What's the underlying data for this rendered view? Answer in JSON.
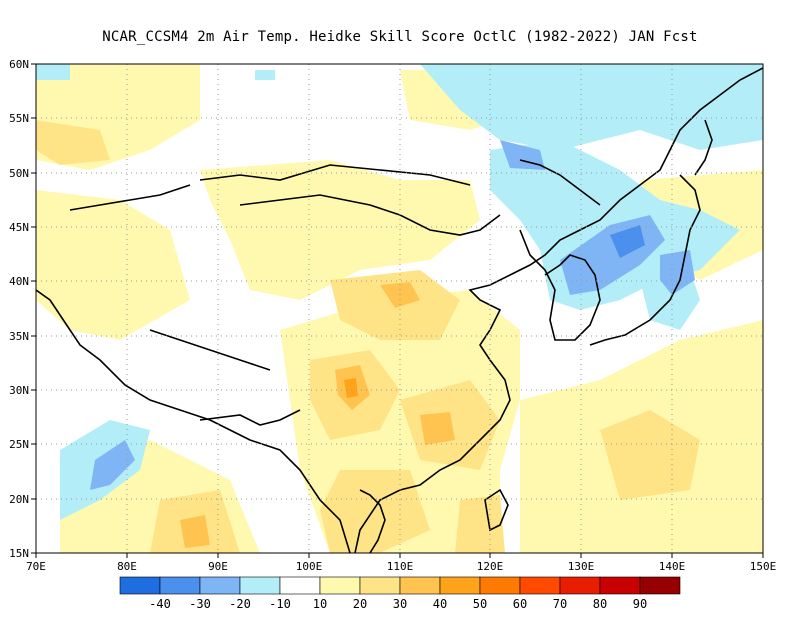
{
  "title": "NCAR_CCSM4  2m Air Temp. Heidke Skill Score OctlC (1982-2022) JAN Fcst",
  "map": {
    "lon_range": [
      70,
      150
    ],
    "lat_range": [
      15,
      60
    ],
    "lon_ticks": [
      "70E",
      "80E",
      "90E",
      "100E",
      "110E",
      "120E",
      "130E",
      "140E",
      "150E"
    ],
    "lat_ticks": [
      "15N",
      "20N",
      "25N",
      "30N",
      "35N",
      "40N",
      "45N",
      "50N",
      "55N",
      "60N"
    ],
    "gridlines": "dotted"
  },
  "colorbar": {
    "colors": [
      "#1e6ee0",
      "#4a90ec",
      "#7fb5f4",
      "#b3eef8",
      "#ffffff",
      "#fff9b0",
      "#ffe487",
      "#ffc44f",
      "#ffa31a",
      "#ff7a00",
      "#ff4a00",
      "#e81e00",
      "#c80000",
      "#960000"
    ],
    "labels": [
      "-40",
      "-30",
      "-20",
      "-10",
      "10",
      "20",
      "30",
      "40",
      "50",
      "60",
      "70",
      "80",
      "90"
    ]
  }
}
